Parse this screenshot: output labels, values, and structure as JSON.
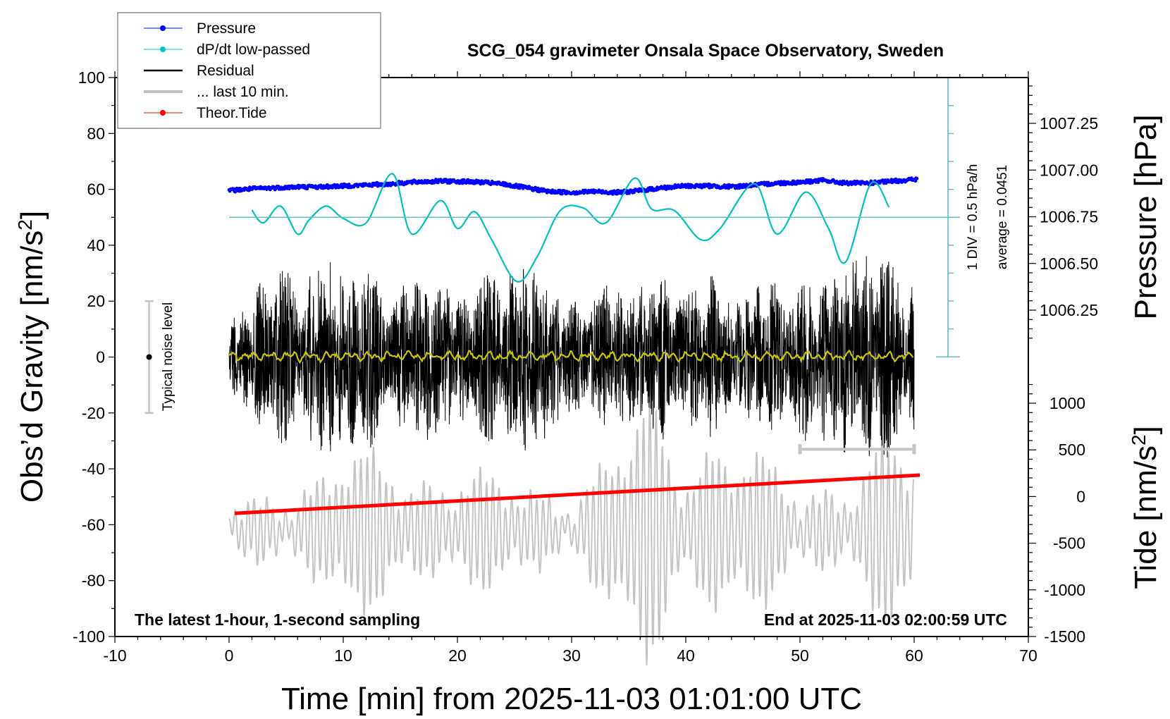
{
  "chart_data": {
    "type": "line",
    "title": "SCG_054 gravimeter Onsala Space Observatory, Sweden",
    "xlabel": "Time [min] from 2025-11-03 01:01:00 UTC",
    "ylabel_left": "Obs’d Gravity [nm/s²]",
    "ylabel_right_upper": "Pressure [hPa]",
    "ylabel_right_lower": "Tide [nm/s²]",
    "xlim": [
      -10,
      70
    ],
    "ylim_left": [
      -100,
      100
    ],
    "x_ticks": [
      -10,
      0,
      10,
      20,
      30,
      40,
      50,
      60,
      70
    ],
    "x_tick_labels": [
      "-10",
      "0",
      "10",
      "20",
      "30",
      "40",
      "50",
      "60",
      "70"
    ],
    "y_left_ticks": [
      100,
      80,
      60,
      40,
      20,
      0,
      -20,
      -40,
      -60,
      -80,
      -100
    ],
    "y_left_tick_labels": [
      "100",
      "80",
      "60",
      "40",
      "20",
      "0",
      "-20",
      "-40",
      "-60",
      "-80",
      "-100"
    ],
    "pressure_axis": {
      "ticks": [
        1007.25,
        1007.0,
        1006.75,
        1006.5,
        1006.25
      ],
      "tick_labels": [
        "1007.25",
        "1007.00",
        "1006.75",
        "1006.50",
        "1006.25"
      ]
    },
    "tide_axis": {
      "ticks": [
        1000,
        500,
        0,
        -500,
        -1000,
        -1500
      ],
      "tick_labels": [
        "1000",
        "500",
        "0",
        "-500",
        "-1000",
        "-1500"
      ]
    },
    "legend": {
      "placement": "top-left",
      "entries": [
        {
          "label": "Pressure",
          "color": "#0000ff",
          "marker": "dot"
        },
        {
          "label": "dP/dt low-passed",
          "color": "#00c8c8",
          "marker": "dot"
        },
        {
          "label": "Residual",
          "color": "#000000",
          "marker": "line"
        },
        {
          "label": "... last 10 min.",
          "color": "#c0c0c0",
          "marker": "thick-line"
        },
        {
          "label": "Theor.Tide",
          "color": "#ff0000",
          "marker": "dot"
        }
      ]
    },
    "series": [
      {
        "name": "Pressure",
        "unit": "hPa",
        "color": "#0000ff",
        "x": [
          0,
          2,
          4,
          6,
          8,
          10,
          12,
          14,
          16,
          18,
          20,
          22,
          24,
          26,
          28,
          30,
          32,
          34,
          36,
          38,
          40,
          42,
          44,
          46,
          48,
          50,
          52,
          54,
          56,
          58,
          60
        ],
        "values": [
          1006.89,
          1006.9,
          1006.905,
          1006.91,
          1006.91,
          1006.915,
          1006.92,
          1006.925,
          1006.935,
          1006.94,
          1006.94,
          1006.935,
          1006.925,
          1006.905,
          1006.885,
          1006.88,
          1006.885,
          1006.88,
          1006.89,
          1006.905,
          1006.915,
          1006.915,
          1006.91,
          1006.92,
          1006.93,
          1006.935,
          1006.945,
          1006.93,
          1006.93,
          1006.94,
          1006.95
        ]
      },
      {
        "name": "dP/dt low-passed",
        "unit": "hPa/h (1 DIV = 0.5 hPa/h, relative to average)",
        "color": "#00c8c8",
        "x": [
          2,
          3,
          4.5,
          6,
          7,
          8.5,
          10,
          12,
          14.3,
          16,
          18.5,
          20,
          21.5,
          23,
          25.2,
          27,
          29,
          31,
          33,
          35.5,
          37,
          39,
          41.3,
          43,
          46,
          48,
          50.5,
          52.5,
          54,
          56.2,
          57.8
        ],
        "values": [
          0.13,
          -0.1,
          0.2,
          -0.3,
          -0.05,
          0.2,
          -0.02,
          -0.1,
          0.78,
          -0.3,
          0.3,
          -0.2,
          0.1,
          -0.4,
          -1.15,
          -0.7,
          0.12,
          0.17,
          -0.1,
          0.7,
          0.15,
          0.12,
          -0.4,
          -0.2,
          0.6,
          -0.3,
          0.45,
          -0.2,
          -0.8,
          0.6,
          0.18
        ]
      },
      {
        "name": "Residual",
        "unit": "nm/s²",
        "color": "#000000",
        "x_range": [
          0,
          60
        ],
        "envelope_minutes": [
          0,
          2,
          4,
          6,
          8,
          10,
          12,
          14,
          16,
          18,
          20,
          22,
          24,
          26,
          28,
          30,
          32,
          34,
          36,
          38,
          40,
          42,
          44,
          46,
          48,
          50,
          52,
          54,
          56,
          58,
          60
        ],
        "envelope_amplitude": [
          12,
          22,
          38,
          25,
          38,
          30,
          35,
          25,
          28,
          32,
          22,
          30,
          32,
          35,
          30,
          20,
          28,
          26,
          25,
          30,
          22,
          35,
          18,
          25,
          28,
          30,
          30,
          35,
          40,
          35,
          30
        ]
      },
      {
        "name": "Residual smoothed",
        "unit": "nm/s²",
        "color": "#c8c800",
        "approx_value": 0,
        "fluctuation": 2
      },
      {
        "name": "... last 10 min.",
        "unit": "nm/s²",
        "color": "#c0c0c0",
        "x_range": [
          0,
          60
        ],
        "oscillation_period_min": 0.55,
        "center": -62,
        "envelope_minutes": [
          0,
          5,
          10,
          15,
          20,
          25,
          30,
          35,
          36.5,
          40,
          43,
          45,
          50,
          55,
          58,
          60
        ],
        "envelope_amplitude": [
          5,
          15,
          25,
          20,
          22,
          12,
          15,
          30,
          40,
          28,
          38,
          28,
          10,
          25,
          30,
          20
        ]
      },
      {
        "name": "Theor.Tide",
        "unit": "nm/s²",
        "color": "#ff0000",
        "x": [
          0.5,
          60.5
        ],
        "values_on_gravity_axis": [
          -53.5,
          -46.5
        ],
        "values": [
          -180,
          230
        ]
      }
    ],
    "annotations": {
      "cyan_scale": {
        "div": "1 DIV = 0.5 hPa/h",
        "average": "average = 0.0451",
        "baseline_value_gravity_axis": 50
      },
      "noise_bar": {
        "label": "Typical noise level",
        "center": 0,
        "range": [
          -20,
          20
        ],
        "x": -7
      },
      "last10_bar": {
        "x_range": [
          50,
          60
        ],
        "y": -33
      },
      "bottom_left": "The latest 1-hour, 1-second sampling",
      "bottom_right": "End at 2025-11-03 02:00:59 UTC"
    },
    "grid": false
  }
}
